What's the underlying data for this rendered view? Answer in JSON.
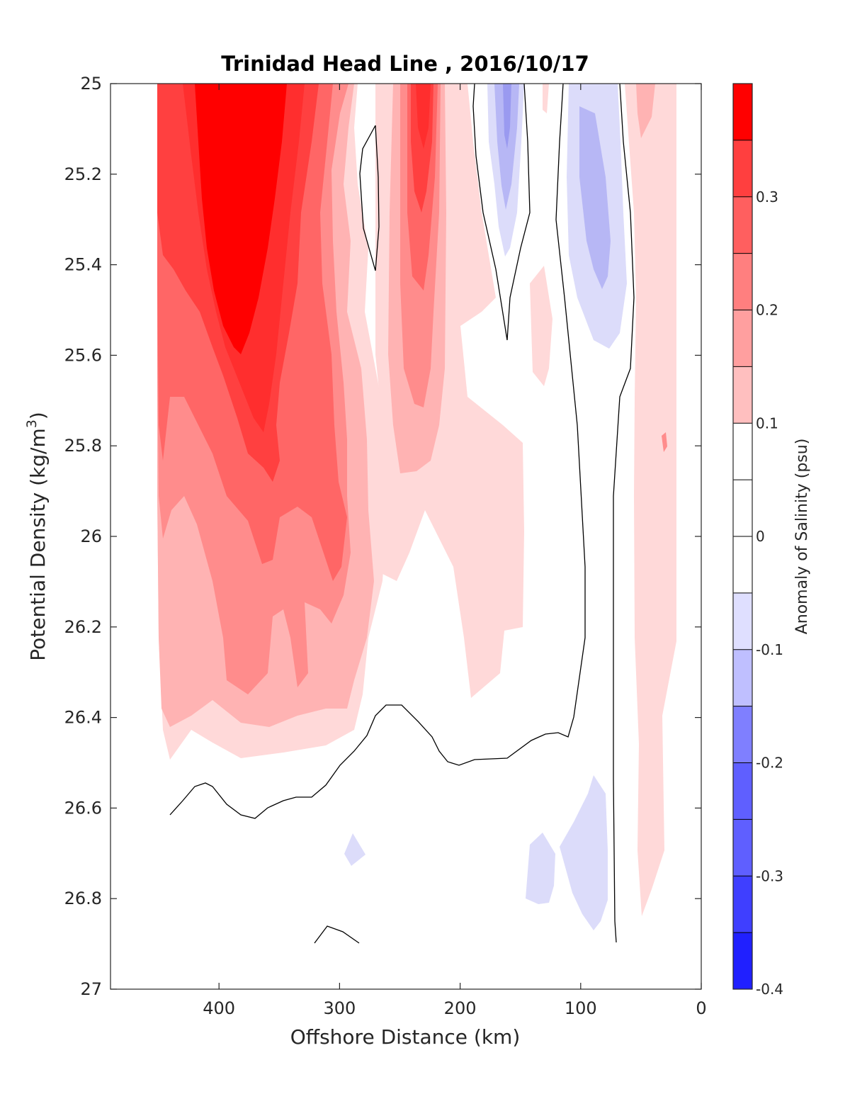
{
  "chart_data": {
    "type": "heatmap",
    "subtype": "filled-contour",
    "title": "Trinidad Head Line , 2016/10/17",
    "xlabel": "Offshore Distance (km)",
    "ylabel": "Potential Density (kg/m",
    "ylabel_sup": "3",
    "ylabel_close": ")",
    "xlim": [
      490,
      0
    ],
    "x_reversed": true,
    "ylim": [
      27,
      25
    ],
    "y_reversed": true,
    "x_ticks": [
      400,
      300,
      200,
      100,
      0
    ],
    "y_ticks": [
      25,
      25.2,
      25.4,
      25.6,
      25.8,
      26,
      26.2,
      26.4,
      26.6,
      26.8,
      27
    ],
    "y_tick_labels": [
      "25",
      "25.2",
      "25.4",
      "25.6",
      "25.8",
      "26",
      "26.2",
      "26.4",
      "26.6",
      "26.8",
      "27"
    ],
    "x_tick_labels": [
      "400",
      "300",
      "200",
      "100",
      "0"
    ],
    "colorbar": {
      "label": "Anomaly of Salinity (psu)",
      "range": [
        -0.4,
        0.4
      ],
      "levels": 16,
      "ticks": [
        -0.4,
        -0.3,
        -0.2,
        -0.1,
        0,
        0.1,
        0.2,
        0.3
      ],
      "tick_labels": [
        "-0.4",
        "-0.3",
        "-0.2",
        "-0.1",
        "0",
        "0.1",
        "0.2",
        "0.3"
      ],
      "colormap": "blue-white-red"
    },
    "contour_line_level": 0,
    "features": [
      {
        "kind": "positive",
        "center_x": 375,
        "center_y": 25.3,
        "peak": 0.4
      },
      {
        "kind": "positive",
        "center_x": 230,
        "center_y": 25.1,
        "peak": 0.35
      },
      {
        "kind": "negative",
        "center_x": 160,
        "center_y": 25.1,
        "peak": -0.2
      },
      {
        "kind": "negative",
        "center_x": 95,
        "center_y": 25.25,
        "peak": -0.15
      },
      {
        "kind": "negative",
        "center_x": 95,
        "center_y": 26.72,
        "peak": -0.1
      },
      {
        "kind": "negative",
        "center_x": 135,
        "center_y": 26.75,
        "peak": -0.1
      },
      {
        "kind": "negative",
        "center_x": 290,
        "center_y": 26.7,
        "peak": -0.1
      },
      {
        "kind": "positive",
        "center_x": 40,
        "center_y": 26.2,
        "peak": 0.1
      }
    ],
    "colors": {
      "pos1": "#ffd9d9",
      "pos2": "#ffb3b3",
      "pos3": "#ff8c8c",
      "pos4": "#ff6666",
      "pos5": "#ff4040",
      "pos6": "#ff2e2e",
      "pos7": "#ff0000",
      "neg1": "#dcdcfa",
      "neg2": "#b7b7f5",
      "neg3": "#9a9af0",
      "cb": [
        "#0000ff",
        "#2020ff",
        "#3f3fff",
        "#5f5fff",
        "#7f7fff",
        "#9f9fff",
        "#bfbfff",
        "#dfdfff",
        "#ffffff",
        "#ffffff",
        "#ffdfdf",
        "#ffbfbf",
        "#ff9f9f",
        "#ff7f7f",
        "#ff5f5f",
        "#ff3f3f",
        "#ff0000"
      ]
    }
  }
}
